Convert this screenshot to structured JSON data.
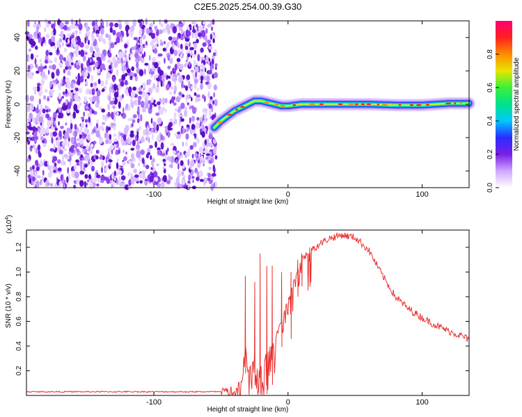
{
  "title": "C2E5.2025.254.00.39.G30",
  "chart_data": [
    {
      "type": "heatmap",
      "name": "spectrogram",
      "xlabel": "Height of straight line (km)",
      "ylabel": "Frequency (Hz)",
      "xlim": [
        -195,
        135
      ],
      "ylim": [
        -50,
        50
      ],
      "xticks": [
        -100,
        0,
        100
      ],
      "yticks": [
        -40,
        -20,
        0,
        20,
        40
      ],
      "noise_region_x": [
        -195,
        -53
      ],
      "signal_track": {
        "x": [
          -55,
          -50,
          -45,
          -40,
          -35,
          -30,
          -25,
          -20,
          -15,
          -10,
          -5,
          0,
          10,
          20,
          40,
          60,
          80,
          100,
          120,
          135
        ],
        "freq": [
          -14,
          -10,
          -7,
          -4,
          -2,
          0,
          2,
          2,
          1,
          0,
          -1,
          -1,
          0,
          0,
          0,
          0,
          -0.5,
          -0.5,
          0.5,
          0.5
        ]
      },
      "colorbar": {
        "label": "Normalized spectral amplitude",
        "range": [
          0,
          1
        ],
        "ticks": [
          "0.0",
          "0.2",
          "0.4",
          "0.6",
          "0.8"
        ],
        "ticks_values": [
          0.0,
          0.2,
          0.4,
          0.6,
          0.8
        ],
        "colormap": [
          "#ffffff",
          "#cfa8ff",
          "#7a1fe6",
          "#2b2bff",
          "#00c8ff",
          "#00e28a",
          "#3cf03c",
          "#e6e600",
          "#ff8c00",
          "#ff2020",
          "#ff0070"
        ]
      }
    },
    {
      "type": "line",
      "name": "snr",
      "xlabel": "Height of straight line (km)",
      "ylabel": "SNR (10 * v/v)",
      "y_multiplier": "(x10",
      "y_multiplier_exp": "4",
      "y_multiplier_close": ")",
      "xlim": [
        -195,
        135
      ],
      "ylim": [
        0,
        1.34
      ],
      "xticks": [
        -100,
        0,
        100
      ],
      "yticks": [
        0.2,
        0.4,
        0.6,
        0.8,
        1.0,
        1.2
      ],
      "ytick_labels": [
        "0.2",
        "0.4",
        "0.6",
        "0.8",
        "1.0",
        "1.2"
      ],
      "color": "#e8312f",
      "envelope": {
        "x": [
          -195,
          -50,
          -38,
          -34,
          -32,
          -30,
          -25,
          -22,
          -20,
          -15,
          -10,
          -5,
          0,
          5,
          10,
          20,
          30,
          40,
          50,
          60,
          70,
          80,
          90,
          100,
          110,
          120,
          130,
          135
        ],
        "y": [
          0.03,
          0.03,
          0.05,
          0.15,
          0.45,
          0.2,
          0.3,
          0.15,
          0.25,
          0.35,
          0.45,
          0.6,
          0.75,
          0.95,
          1.1,
          1.2,
          1.27,
          1.3,
          1.28,
          1.18,
          0.98,
          0.8,
          0.7,
          0.63,
          0.57,
          0.52,
          0.48,
          0.45
        ]
      },
      "spikes": {
        "x": [
          -32,
          -25,
          -21,
          -16,
          -12,
          -5,
          2,
          7,
          10,
          16
        ],
        "y": [
          0.97,
          0.92,
          1.15,
          1.05,
          1.05,
          1.0,
          1.0,
          1.1,
          1.15,
          1.2
        ]
      },
      "noise": 0.06
    }
  ]
}
